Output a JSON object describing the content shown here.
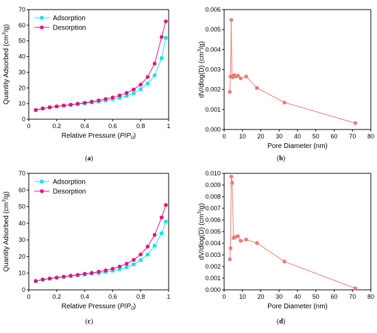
{
  "colors": {
    "adsorption": "#19e3e8",
    "desorption": "#e6127a",
    "pore": "#f07a74",
    "axis": "#000000"
  },
  "chart_data": [
    {
      "id": "a",
      "type": "line",
      "caption": "(a)",
      "xlabel": {
        "base": "Relative Pressure (",
        "p": "P",
        "slash": "/",
        "p0": "P",
        "sub0": "0",
        "close": ")"
      },
      "ylabel": {
        "base": "Quantity Adsorbed (cm",
        "sup": "3",
        "tail": "/g)"
      },
      "xlim": [
        0,
        1.0
      ],
      "ylim": [
        0,
        70
      ],
      "xticks": [
        "0",
        "0.2",
        "0.4",
        "0.6",
        "0.8",
        "1"
      ],
      "yticks": [
        "0",
        "10",
        "20",
        "30",
        "40",
        "50",
        "60",
        "70"
      ],
      "legend_position": "top-left",
      "series": [
        {
          "name": "Adsorption",
          "marker": "square",
          "color_key": "adsorption",
          "x": [
            0.05,
            0.1,
            0.15,
            0.2,
            0.25,
            0.3,
            0.35,
            0.4,
            0.45,
            0.5,
            0.55,
            0.6,
            0.65,
            0.7,
            0.75,
            0.8,
            0.85,
            0.9,
            0.95,
            0.98
          ],
          "y": [
            5.8,
            6.8,
            7.5,
            8.1,
            8.6,
            9.1,
            9.6,
            10.1,
            10.7,
            11.3,
            12.0,
            12.8,
            13.7,
            14.9,
            16.6,
            19.2,
            22.8,
            28.0,
            39.0,
            52.0
          ]
        },
        {
          "name": "Desorption",
          "marker": "circle",
          "color_key": "desorption",
          "x": [
            0.05,
            0.1,
            0.15,
            0.2,
            0.25,
            0.3,
            0.35,
            0.4,
            0.45,
            0.5,
            0.55,
            0.6,
            0.65,
            0.7,
            0.75,
            0.8,
            0.85,
            0.9,
            0.95,
            0.98
          ],
          "y": [
            5.9,
            6.9,
            7.6,
            8.2,
            8.8,
            9.3,
            9.9,
            10.5,
            11.2,
            12.0,
            12.9,
            13.9,
            15.2,
            16.8,
            19.0,
            22.1,
            27.0,
            35.5,
            52.5,
            62.5
          ]
        }
      ]
    },
    {
      "id": "b",
      "type": "line",
      "caption": "(b)",
      "xlabel": {
        "base": "Pore Diameter (nm)"
      },
      "ylabel": {
        "base": "dV/dlog(D) (cm",
        "sup": "3",
        "tail": "/g)"
      },
      "xlim": [
        0,
        80
      ],
      "ylim": [
        0,
        0.006
      ],
      "xticks": [
        "0",
        "10",
        "20",
        "30",
        "40",
        "50",
        "60",
        "70",
        "80"
      ],
      "yticks": [
        "0.000",
        "0.001",
        "0.002",
        "0.003",
        "0.004",
        "0.005",
        "0.006"
      ],
      "series": [
        {
          "marker": "circle",
          "color_key": "pore",
          "x": [
            3.1,
            3.5,
            3.9,
            4.3,
            4.8,
            5.5,
            6.3,
            7.5,
            9.0,
            12.0,
            17.9,
            32.9,
            71.6
          ],
          "y": [
            0.00188,
            0.00265,
            0.00548,
            0.00266,
            0.00262,
            0.00272,
            0.00266,
            0.00269,
            0.00256,
            0.00265,
            0.00208,
            0.00135,
            0.00032
          ]
        }
      ]
    },
    {
      "id": "c",
      "type": "line",
      "caption": "(c)",
      "xlabel": {
        "base": "Relative Pressure (",
        "p": "P",
        "slash": "/",
        "p0": "P",
        "sub0": "0",
        "close": ")"
      },
      "ylabel": {
        "base": "Quantity Adsorbed (cm",
        "sup": "3",
        "tail": "/g)"
      },
      "xlim": [
        0,
        1.0
      ],
      "ylim": [
        0,
        70
      ],
      "xticks": [
        "0",
        "0.2",
        "0.4",
        "0.6",
        "0.8",
        "1"
      ],
      "yticks": [
        "0",
        "10",
        "20",
        "30",
        "40",
        "50",
        "60",
        "70"
      ],
      "legend_position": "top-left",
      "series": [
        {
          "name": "Adsorption",
          "marker": "square",
          "color_key": "adsorption",
          "x": [
            0.05,
            0.1,
            0.15,
            0.2,
            0.25,
            0.3,
            0.35,
            0.4,
            0.45,
            0.5,
            0.55,
            0.6,
            0.65,
            0.7,
            0.75,
            0.8,
            0.85,
            0.9,
            0.95,
            0.98
          ],
          "y": [
            5.2,
            6.1,
            6.7,
            7.2,
            7.7,
            8.2,
            8.7,
            9.2,
            9.7,
            10.2,
            10.8,
            11.5,
            12.4,
            13.6,
            15.3,
            17.8,
            21.2,
            26.5,
            34.0,
            41.0
          ]
        },
        {
          "name": "Desorption",
          "marker": "circle",
          "color_key": "desorption",
          "x": [
            0.05,
            0.1,
            0.15,
            0.2,
            0.25,
            0.3,
            0.35,
            0.4,
            0.45,
            0.5,
            0.55,
            0.6,
            0.65,
            0.7,
            0.75,
            0.8,
            0.85,
            0.9,
            0.95,
            0.98
          ],
          "y": [
            5.3,
            6.2,
            6.8,
            7.4,
            7.9,
            8.5,
            9.0,
            9.6,
            10.2,
            10.9,
            11.7,
            12.7,
            14.0,
            15.7,
            18.0,
            21.3,
            26.0,
            33.0,
            43.5,
            51.0
          ]
        }
      ]
    },
    {
      "id": "d",
      "type": "line",
      "caption": "(d)",
      "xlabel": {
        "base": "Pore Diameter (nm)"
      },
      "ylabel": {
        "base": "dV/dlog(D) (cm",
        "sup": "3",
        "tail": "/g)"
      },
      "xlim": [
        0,
        80
      ],
      "ylim": [
        0,
        0.01
      ],
      "xticks": [
        "0",
        "10",
        "20",
        "30",
        "40",
        "50",
        "60",
        "70",
        "80"
      ],
      "yticks": [
        "0.000",
        "0.001",
        "0.002",
        "0.003",
        "0.004",
        "0.005",
        "0.006",
        "0.007",
        "0.008",
        "0.009",
        "0.010"
      ],
      "series": [
        {
          "marker": "circle",
          "color_key": "pore",
          "x": [
            3.1,
            3.5,
            3.9,
            4.4,
            5.1,
            6.0,
            7.5,
            9.0,
            12.0,
            17.9,
            32.9,
            71.6
          ],
          "y": [
            0.00262,
            0.00358,
            0.00972,
            0.00918,
            0.00446,
            0.00452,
            0.00461,
            0.00421,
            0.00432,
            0.00402,
            0.00243,
            0.00013
          ]
        }
      ]
    }
  ]
}
